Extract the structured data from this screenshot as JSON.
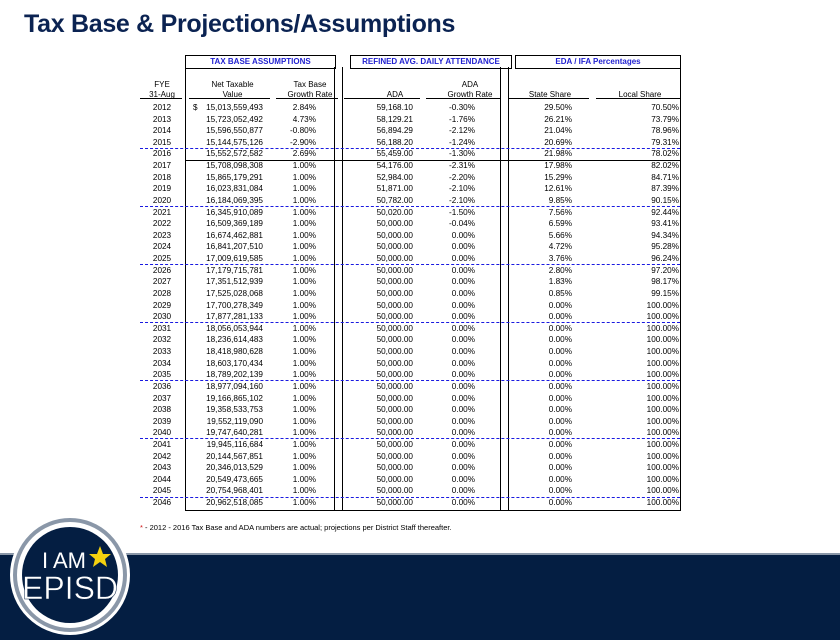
{
  "title": "Tax Base & Projections/Assumptions",
  "sections": {
    "tax_base": "TAX BASE ASSUMPTIONS",
    "ada": "REFINED AVG. DAILY ATTENDANCE",
    "eda": "EDA / IFA Percentages"
  },
  "headers": {
    "fye": [
      "FYE",
      "31-Aug"
    ],
    "net_taxable": [
      "Net Taxable",
      "Value"
    ],
    "tax_growth": [
      "Tax Base",
      "Growth Rate"
    ],
    "ada": "ADA",
    "ada_growth": [
      "ADA",
      "Growth Rate"
    ],
    "state_share": "State Share",
    "local_share": "Local Share"
  },
  "currency_symbol": "$",
  "rows": [
    [
      "2012",
      "15,013,559,493",
      "2.84%",
      "59,168.10",
      "-0.30%",
      "29.50%",
      "70.50%"
    ],
    [
      "2013",
      "15,723,052,492",
      "4.73%",
      "58,129.21",
      "-1.76%",
      "26.21%",
      "73.79%"
    ],
    [
      "2014",
      "15,596,550,877",
      "-0.80%",
      "56,894.29",
      "-2.12%",
      "21.04%",
      "78.96%"
    ],
    [
      "2015",
      "15,144,575,126",
      "-2.90%",
      "56,188.20",
      "-1.24%",
      "20.69%",
      "79.31%"
    ],
    [
      "2016",
      "15,552,572,582",
      "2.69%",
      "55,459.00",
      "-1.30%",
      "21.98%",
      "78.02%"
    ],
    [
      "2017",
      "15,708,098,308",
      "1.00%",
      "54,176.00",
      "-2.31%",
      "17.98%",
      "82.02%"
    ],
    [
      "2018",
      "15,865,179,291",
      "1.00%",
      "52,984.00",
      "-2.20%",
      "15.29%",
      "84.71%"
    ],
    [
      "2019",
      "16,023,831,084",
      "1.00%",
      "51,871.00",
      "-2.10%",
      "12.61%",
      "87.39%"
    ],
    [
      "2020",
      "16,184,069,395",
      "1.00%",
      "50,782.00",
      "-2.10%",
      "9.85%",
      "90.15%"
    ],
    [
      "2021",
      "16,345,910,089",
      "1.00%",
      "50,020.00",
      "-1.50%",
      "7.56%",
      "92.44%"
    ],
    [
      "2022",
      "16,509,369,189",
      "1.00%",
      "50,000.00",
      "-0.04%",
      "6.59%",
      "93.41%"
    ],
    [
      "2023",
      "16,674,462,881",
      "1.00%",
      "50,000.00",
      "0.00%",
      "5.66%",
      "94.34%"
    ],
    [
      "2024",
      "16,841,207,510",
      "1.00%",
      "50,000.00",
      "0.00%",
      "4.72%",
      "95.28%"
    ],
    [
      "2025",
      "17,009,619,585",
      "1.00%",
      "50,000.00",
      "0.00%",
      "3.76%",
      "96.24%"
    ],
    [
      "2026",
      "17,179,715,781",
      "1.00%",
      "50,000.00",
      "0.00%",
      "2.80%",
      "97.20%"
    ],
    [
      "2027",
      "17,351,512,939",
      "1.00%",
      "50,000.00",
      "0.00%",
      "1.83%",
      "98.17%"
    ],
    [
      "2028",
      "17,525,028,068",
      "1.00%",
      "50,000.00",
      "0.00%",
      "0.85%",
      "99.15%"
    ],
    [
      "2029",
      "17,700,278,349",
      "1.00%",
      "50,000.00",
      "0.00%",
      "0.00%",
      "100.00%"
    ],
    [
      "2030",
      "17,877,281,133",
      "1.00%",
      "50,000.00",
      "0.00%",
      "0.00%",
      "100.00%"
    ],
    [
      "2031",
      "18,056,053,944",
      "1.00%",
      "50,000.00",
      "0.00%",
      "0.00%",
      "100.00%"
    ],
    [
      "2032",
      "18,236,614,483",
      "1.00%",
      "50,000.00",
      "0.00%",
      "0.00%",
      "100.00%"
    ],
    [
      "2033",
      "18,418,980,628",
      "1.00%",
      "50,000.00",
      "0.00%",
      "0.00%",
      "100.00%"
    ],
    [
      "2034",
      "18,603,170,434",
      "1.00%",
      "50,000.00",
      "0.00%",
      "0.00%",
      "100.00%"
    ],
    [
      "2035",
      "18,789,202,139",
      "1.00%",
      "50,000.00",
      "0.00%",
      "0.00%",
      "100.00%"
    ],
    [
      "2036",
      "18,977,094,160",
      "1.00%",
      "50,000.00",
      "0.00%",
      "0.00%",
      "100.00%"
    ],
    [
      "2037",
      "19,166,865,102",
      "1.00%",
      "50,000.00",
      "0.00%",
      "0.00%",
      "100.00%"
    ],
    [
      "2038",
      "19,358,533,753",
      "1.00%",
      "50,000.00",
      "0.00%",
      "0.00%",
      "100.00%"
    ],
    [
      "2039",
      "19,552,119,090",
      "1.00%",
      "50,000.00",
      "0.00%",
      "0.00%",
      "100.00%"
    ],
    [
      "2040",
      "19,747,640,281",
      "1.00%",
      "50,000.00",
      "0.00%",
      "0.00%",
      "100.00%"
    ],
    [
      "2041",
      "19,945,116,684",
      "1.00%",
      "50,000.00",
      "0.00%",
      "0.00%",
      "100.00%"
    ],
    [
      "2042",
      "20,144,567,851",
      "1.00%",
      "50,000.00",
      "0.00%",
      "0.00%",
      "100.00%"
    ],
    [
      "2043",
      "20,346,013,529",
      "1.00%",
      "50,000.00",
      "0.00%",
      "0.00%",
      "100.00%"
    ],
    [
      "2044",
      "20,549,473,665",
      "1.00%",
      "50,000.00",
      "0.00%",
      "0.00%",
      "100.00%"
    ],
    [
      "2045",
      "20,754,968,401",
      "1.00%",
      "50,000.00",
      "0.00%",
      "0.00%",
      "100.00%"
    ],
    [
      "2046",
      "20,962,518,085",
      "1.00%",
      "50,000.00",
      "0.00%",
      "0.00%",
      "100.00%"
    ]
  ],
  "footnote": {
    "asterisk": "*",
    "text": " - 2012 - 2016 Tax Base and ADA numbers are actual; projections per District Staff thereafter."
  },
  "logo": {
    "line1": "I AM",
    "line2": "EPISD"
  },
  "colors": {
    "title": "#0b2352",
    "section_header": "#1f1fd0",
    "footer_band": "#041e42",
    "star": "#f5d20f",
    "asterisk": "#d01010"
  }
}
